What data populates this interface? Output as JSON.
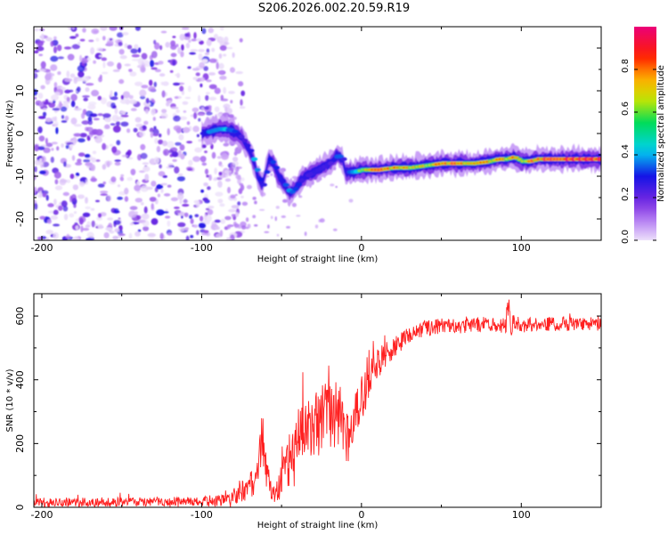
{
  "title": "S206.2026.002.20.59.R19",
  "colors": {
    "snr_line": "#ff2020",
    "axes": "#000000",
    "background": "#ffffff"
  },
  "chart_data": [
    {
      "type": "heatmap",
      "title": "S206.2026.002.20.59.R19",
      "xlabel": "Height of straight line (km)",
      "ylabel": "Frequency (Hz)",
      "xlim": [
        -205,
        150
      ],
      "ylim": [
        -25,
        25
      ],
      "xticks": [
        -200,
        -100,
        0,
        100
      ],
      "yticks": [
        20,
        10,
        0,
        -10,
        -20
      ],
      "colorbar": {
        "label": "Normalized spectral amplitude",
        "range": [
          0.0,
          1.0
        ],
        "ticks": [
          0.0,
          0.2,
          0.4,
          0.6,
          0.8
        ],
        "tick_labels": [
          "0.0",
          "0.2",
          "0.4",
          "0.6",
          "0.8"
        ]
      },
      "noise_region_x": [
        -205,
        -82
      ],
      "ridge": {
        "x": [
          -100,
          -95,
          -90,
          -85,
          -80,
          -75,
          -70,
          -67,
          -65,
          -62,
          -58,
          -55,
          -52,
          -48,
          -45,
          -42,
          -38,
          -35,
          -30,
          -25,
          -20,
          -15,
          -12,
          -10,
          -5,
          0,
          10,
          20,
          30,
          40,
          50,
          60,
          70,
          80,
          85,
          90,
          95,
          100,
          105,
          110,
          120,
          130,
          140,
          150
        ],
        "freq": [
          0,
          0.5,
          1,
          1,
          0.5,
          -1,
          -4,
          -7,
          -10,
          -12,
          -6,
          -7,
          -10,
          -12,
          -14,
          -13,
          -11,
          -10,
          -9,
          -8,
          -7,
          -5,
          -6,
          -9,
          -9,
          -8.5,
          -8.5,
          -8,
          -8,
          -7.5,
          -7,
          -7,
          -7,
          -6.5,
          -6,
          -6,
          -5.5,
          -6.5,
          -6.5,
          -6,
          -6,
          -6,
          -6,
          -6
        ],
        "amplitude": [
          0.3,
          0.5,
          0.5,
          0.45,
          0.35,
          0.3,
          0.35,
          0.5,
          0.35,
          0.35,
          0.4,
          0.45,
          0.35,
          0.4,
          0.45,
          0.4,
          0.3,
          0.3,
          0.3,
          0.3,
          0.3,
          0.5,
          0.3,
          0.3,
          0.5,
          0.6,
          0.9,
          0.75,
          0.7,
          0.7,
          0.8,
          0.85,
          0.75,
          0.75,
          0.8,
          0.7,
          0.85,
          0.6,
          0.85,
          0.85,
          0.9,
          1.0,
          0.95,
          0.95
        ]
      }
    },
    {
      "type": "line",
      "xlabel": "Height of straight line (km)",
      "ylabel": "SNR (10 * v/v)",
      "xlim": [
        -205,
        150
      ],
      "ylim": [
        0,
        670
      ],
      "xticks": [
        -200,
        -100,
        0,
        100
      ],
      "yticks": [
        0,
        200,
        400,
        600
      ],
      "series": [
        {
          "name": "SNR",
          "x": [
            -205,
            -100,
            -82,
            -70,
            -65,
            -62,
            -60,
            -58,
            -55,
            -52,
            -48,
            -45,
            -42,
            -40,
            -35,
            -30,
            -25,
            -20,
            -15,
            -10,
            -8,
            -5,
            0,
            5,
            10,
            15,
            20,
            25,
            30,
            40,
            50,
            60,
            70,
            80,
            90,
            92,
            94,
            96,
            100,
            110,
            120,
            130,
            140,
            150
          ],
          "mean": [
            15,
            18,
            25,
            60,
            110,
            220,
            150,
            80,
            30,
            60,
            110,
            150,
            140,
            200,
            240,
            260,
            280,
            290,
            300,
            250,
            200,
            280,
            340,
            400,
            450,
            480,
            500,
            520,
            540,
            560,
            570,
            570,
            570,
            575,
            570,
            620,
            560,
            580,
            570,
            575,
            575,
            575,
            575,
            575
          ],
          "noise": [
            15,
            15,
            25,
            45,
            60,
            90,
            80,
            40,
            20,
            50,
            70,
            90,
            90,
            100,
            110,
            110,
            110,
            110,
            110,
            90,
            90,
            80,
            70,
            60,
            50,
            40,
            35,
            30,
            30,
            25,
            25,
            25,
            25,
            25,
            30,
            50,
            40,
            25,
            22,
            22,
            22,
            22,
            22,
            22
          ]
        }
      ]
    }
  ]
}
